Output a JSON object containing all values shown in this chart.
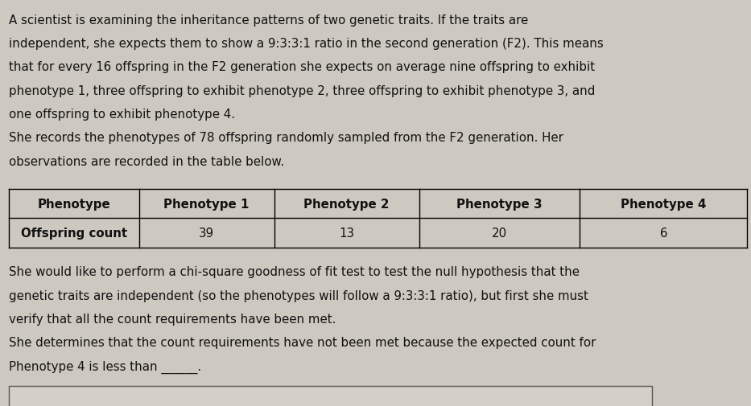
{
  "bg_color": "#cdc9c0",
  "text_color": "#111111",
  "paragraph1_lines": [
    "A scientist is examining the inheritance patterns of two genetic traits. If the traits are",
    "independent, she expects them to show a 9:3:3:1 ratio in the second generation (F2). This means",
    "that for every 16 offspring in the F2 generation she expects on average nine offspring to exhibit",
    "phenotype 1, three offspring to exhibit phenotype 2, three offspring to exhibit phenotype 3, and",
    "one offspring to exhibit phenotype 4.",
    "She records the phenotypes of 78 offspring randomly sampled from the F2 generation. Her",
    "observations are recorded in the table below."
  ],
  "table_headers": [
    "Phenotype",
    "Phenotype 1",
    "Phenotype 2",
    "Phenotype 3",
    "Phenotype 4"
  ],
  "table_row_label": "Offspring count",
  "table_values": [
    "39",
    "13",
    "20",
    "6"
  ],
  "paragraph2_lines": [
    "She would like to perform a chi-square goodness of fit test to test the null hypothesis that the",
    "genetic traits are independent (so the phenotypes will follow a 9:3:3:1 ratio), but first she must",
    "verify that all the count requirements have been met.",
    "She determines that the count requirements have not been met because the expected count for",
    "Phenotype 4 is less than ______."
  ],
  "answer_box_color": "#d4d0c8",
  "font_size_body": 10.8,
  "font_size_table": 10.8,
  "col_bounds": [
    0.012,
    0.185,
    0.365,
    0.558,
    0.772,
    0.995
  ]
}
